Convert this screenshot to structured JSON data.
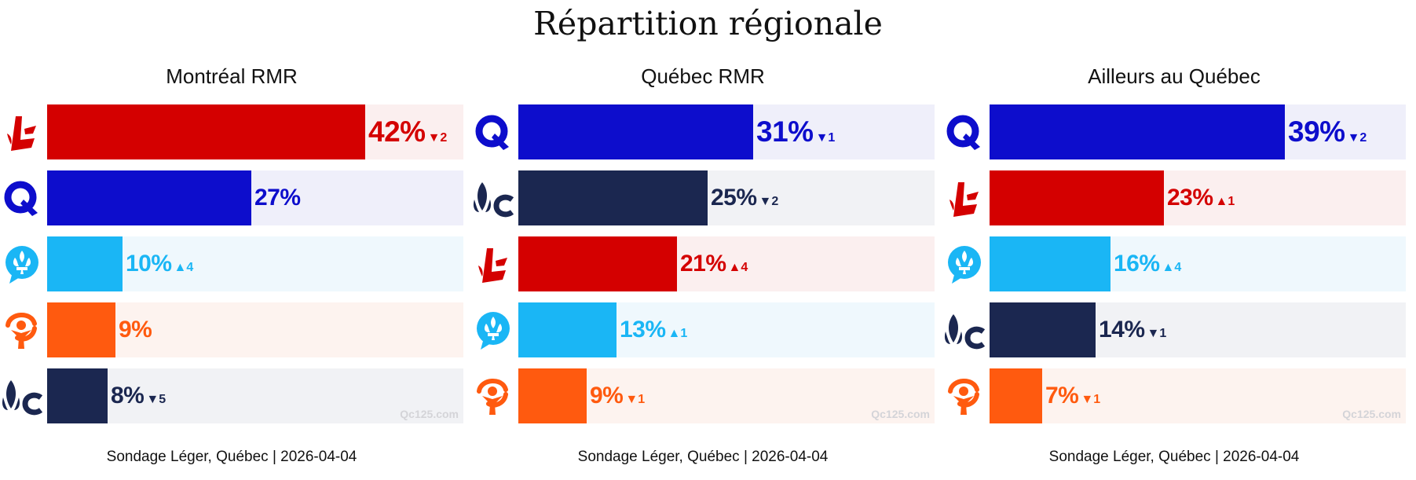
{
  "title": "Répartition régionale",
  "colors": {
    "PLQ": "#d40000",
    "CAQ": "#0d0dcc",
    "PQ": "#1ab6f5",
    "QS": "#ff5a0f",
    "PCQ": "#1b2750"
  },
  "backgrounds": {
    "PLQ": "#fbefef",
    "CAQ": "#efeffa",
    "PQ": "#eff8fd",
    "QS": "#fdf3ef",
    "PCQ": "#f1f2f5"
  },
  "icons": {
    "PLQ": "plq-logo-icon",
    "CAQ": "caq-logo-icon",
    "PQ": "pq-logo-icon",
    "QS": "qs-logo-icon",
    "PCQ": "pcq-logo-icon"
  },
  "chart_data": [
    {
      "type": "bar",
      "title": "Montréal RMR",
      "xlim": [
        0,
        55
      ],
      "categories": [
        "PLQ",
        "CAQ",
        "PQ",
        "QS",
        "PCQ"
      ],
      "values": [
        42,
        27,
        10,
        9,
        8
      ],
      "labels": [
        "42%",
        "27%",
        "10%",
        "9%",
        "8%"
      ],
      "changes": [
        "▼2",
        "",
        "▲4",
        "",
        "▼5"
      ],
      "watermark": "Qc125.com",
      "footer": "Sondage Léger, Québec | 2026-04-04"
    },
    {
      "type": "bar",
      "title": "Québec RMR",
      "xlim": [
        0,
        55
      ],
      "categories": [
        "CAQ",
        "PCQ",
        "PLQ",
        "PQ",
        "QS"
      ],
      "values": [
        31,
        25,
        21,
        13,
        9
      ],
      "labels": [
        "31%",
        "25%",
        "21%",
        "13%",
        "9%"
      ],
      "changes": [
        "▼1",
        "▼2",
        "▲4",
        "▲1",
        "▼1"
      ],
      "watermark": "Qc125.com",
      "footer": "Sondage Léger, Québec | 2026-04-04"
    },
    {
      "type": "bar",
      "title": "Ailleurs au Québec",
      "xlim": [
        0,
        55
      ],
      "categories": [
        "CAQ",
        "PLQ",
        "PQ",
        "PCQ",
        "QS"
      ],
      "values": [
        39,
        23,
        16,
        14,
        7
      ],
      "labels": [
        "39%",
        "23%",
        "16%",
        "14%",
        "7%"
      ],
      "changes": [
        "▼2",
        "▲1",
        "▲4",
        "▼1",
        "▼1"
      ],
      "watermark": "Qc125.com",
      "footer": "Sondage Léger, Québec | 2026-04-04"
    }
  ]
}
